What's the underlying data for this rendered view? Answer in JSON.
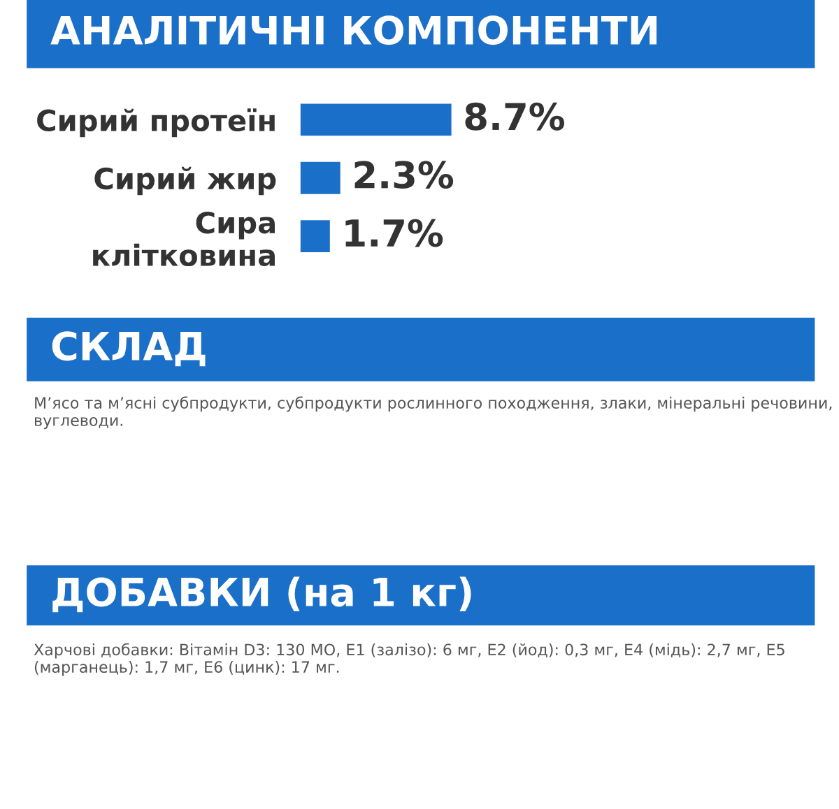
{
  "chart_data": {
    "type": "bar",
    "orientation": "horizontal",
    "title": "АНАЛІТИЧНІ КОМПОНЕНТИ",
    "categories": [
      "Сирий протеїн",
      "Сирий жир",
      "Сира\nклітковина"
    ],
    "values": [
      8.7,
      2.3,
      1.7
    ],
    "color": "#1a6fc9",
    "value_labels": [
      "8.7%",
      "2.3%",
      "1.7%"
    ],
    "annotations": [
      "СКЛАД",
      "М’ясо та м’ясні субпродукти, субпродукти рослинного походження, злаки, мінеральні речовини, вуглеводи.",
      "ДОБАВКИ (на 1 кг)",
      "Харчові добавки: Вітамін D3: 130 МО, E1 (залізо): 6 мг, E2 (йод): 0,3 мг, E4 (мідь): 2,7 мг, E5 (марганець): 1,7 мг, E6 (цинк): 17 мг."
    ],
    "grid": false,
    "legend": false
  }
}
